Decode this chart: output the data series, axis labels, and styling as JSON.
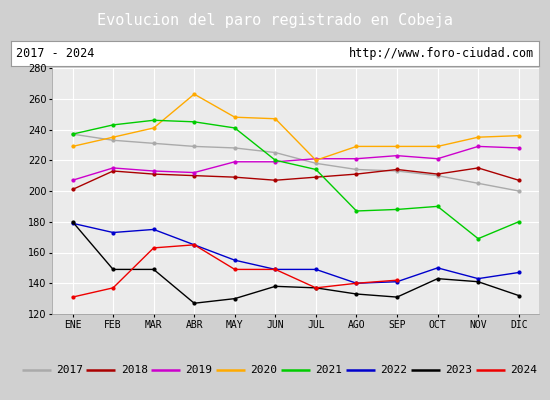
{
  "title": "Evolucion del paro registrado en Cobeja",
  "subtitle_left": "2017 - 2024",
  "subtitle_right": "http://www.foro-ciudad.com",
  "months": [
    "ENE",
    "FEB",
    "MAR",
    "ABR",
    "MAY",
    "JUN",
    "JUL",
    "AGO",
    "SEP",
    "OCT",
    "NOV",
    "DIC"
  ],
  "ylim": [
    120,
    280
  ],
  "yticks": [
    120,
    140,
    160,
    180,
    200,
    220,
    240,
    260,
    280
  ],
  "series": {
    "2017": {
      "color": "#aaaaaa",
      "data": [
        237,
        233,
        231,
        229,
        228,
        225,
        218,
        214,
        213,
        210,
        205,
        200
      ]
    },
    "2018": {
      "color": "#aa0000",
      "data": [
        201,
        213,
        211,
        210,
        209,
        207,
        209,
        211,
        214,
        211,
        215,
        207
      ]
    },
    "2019": {
      "color": "#cc00cc",
      "data": [
        207,
        215,
        213,
        212,
        219,
        219,
        221,
        221,
        223,
        221,
        229,
        228
      ]
    },
    "2020": {
      "color": "#ffaa00",
      "data": [
        229,
        235,
        241,
        263,
        248,
        247,
        220,
        229,
        229,
        229,
        235,
        236
      ]
    },
    "2021": {
      "color": "#00cc00",
      "data": [
        237,
        243,
        246,
        245,
        241,
        220,
        214,
        187,
        188,
        190,
        169,
        180
      ]
    },
    "2022": {
      "color": "#0000cc",
      "data": [
        179,
        173,
        175,
        165,
        155,
        149,
        149,
        140,
        141,
        150,
        143,
        147
      ]
    },
    "2023": {
      "color": "#000000",
      "data": [
        180,
        149,
        149,
        127,
        130,
        138,
        137,
        133,
        131,
        143,
        141,
        132
      ]
    },
    "2024": {
      "color": "#ee0000",
      "data": [
        131,
        137,
        163,
        165,
        149,
        149,
        137,
        140,
        142,
        null,
        null,
        null
      ]
    }
  },
  "title_bg_color": "#5b9bd5",
  "title_text_color": "#ffffff",
  "subtitle_bg_color": "#ffffff",
  "plot_bg_color": "#ebebeb",
  "outer_bg_color": "#d0d0d0",
  "grid_color": "#ffffff",
  "legend_bg_color": "#f0f0f0",
  "title_fontsize": 11,
  "tick_fontsize": 7,
  "legend_fontsize": 8
}
